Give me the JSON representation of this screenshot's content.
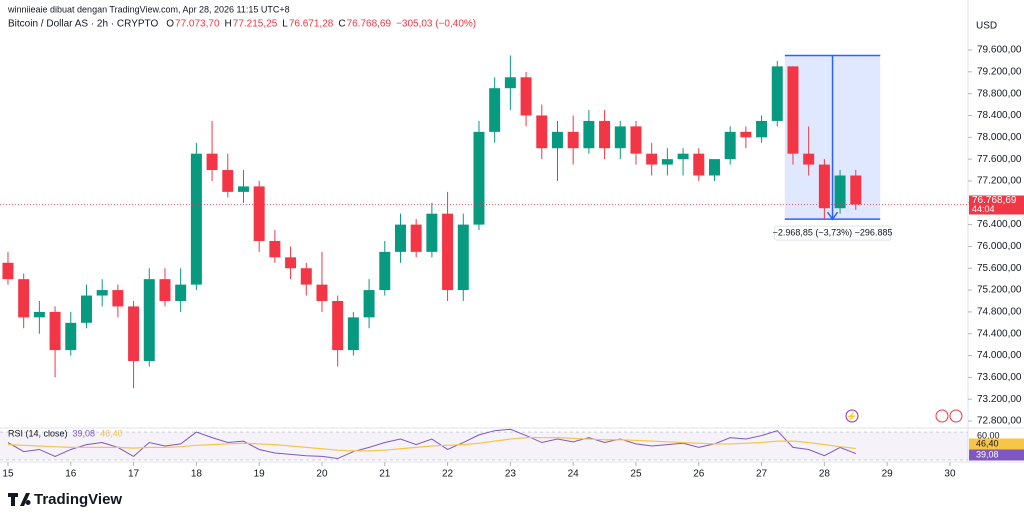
{
  "attribution": "winniieaie dibuat dengan TradingView.com, Apr 28, 2026 11:15 UTC+8",
  "footer": {
    "logo": "TradingView"
  },
  "chart_data": [
    {
      "type": "candlestick",
      "title": "Bitcoin / Dollar AS · 2h · CRYPTO",
      "ohlc": [
        {
          "key": "O",
          "value": "77.073,70"
        },
        {
          "key": "H",
          "value": "77.215,25"
        },
        {
          "key": "L",
          "value": "76.671,28"
        },
        {
          "key": "C",
          "value": "76.768,69"
        }
      ],
      "change": "−305,03 (−0,40%)",
      "currency": "USD",
      "up_color": "#089981",
      "down_color": "#f23645",
      "x": [
        15,
        15.25,
        15.5,
        15.75,
        16,
        16.25,
        16.5,
        16.75,
        17,
        17.25,
        17.5,
        17.75,
        18,
        18.25,
        18.5,
        18.75,
        19,
        19.25,
        19.5,
        19.75,
        20,
        20.25,
        20.5,
        20.75,
        21,
        21.25,
        21.5,
        21.75,
        22,
        22.25,
        22.5,
        22.75,
        23,
        23.25,
        23.5,
        23.75,
        24,
        24.25,
        24.5,
        24.75,
        25,
        25.25,
        25.5,
        25.75,
        26,
        26.25,
        26.5,
        26.75,
        27,
        27.25,
        27.5,
        27.75,
        28,
        28.25,
        28.5
      ],
      "series": [
        {
          "name": "BTCUSD",
          "open": [
            75700,
            75400,
            74700,
            74800,
            74100,
            74600,
            75100,
            75200,
            74900,
            73900,
            75400,
            75000,
            75300,
            77700,
            77400,
            77000,
            77100,
            76100,
            75800,
            75600,
            75300,
            75000,
            74100,
            74700,
            75200,
            75900,
            76400,
            75900,
            76600,
            75200,
            76400,
            78100,
            78900,
            79100,
            78400,
            77800,
            78100,
            77800,
            78300,
            77800,
            78200,
            77700,
            77500,
            77600,
            77700,
            77300,
            77600,
            78100,
            78000,
            78300,
            79300,
            77700,
            77500,
            76700,
            77300
          ],
          "high": [
            75900,
            75500,
            75000,
            74900,
            74800,
            75300,
            75400,
            75300,
            75000,
            75600,
            75600,
            75600,
            77900,
            78300,
            77700,
            77400,
            77200,
            76300,
            76000,
            75700,
            75900,
            75100,
            74800,
            75400,
            76100,
            76600,
            76500,
            76800,
            77000,
            76600,
            78300,
            79100,
            79500,
            79200,
            78600,
            78300,
            78400,
            78500,
            78500,
            78300,
            78300,
            77900,
            77800,
            77800,
            77800,
            77600,
            78200,
            78200,
            78400,
            79400,
            79300,
            78200,
            77600,
            77400,
            77400
          ],
          "low": [
            75300,
            74500,
            74400,
            73600,
            74000,
            74500,
            74900,
            74700,
            73400,
            73800,
            74900,
            74800,
            75200,
            77200,
            76900,
            76800,
            75900,
            75700,
            75400,
            75100,
            74800,
            73800,
            74000,
            74500,
            75100,
            75700,
            75800,
            75800,
            75000,
            75000,
            76300,
            77900,
            78500,
            78200,
            77600,
            77200,
            77500,
            77700,
            77600,
            77600,
            77500,
            77300,
            77300,
            77300,
            77200,
            77200,
            77500,
            77800,
            77900,
            78200,
            77500,
            77300,
            76500,
            76600,
            76670
          ],
          "close": [
            75400,
            74700,
            74800,
            74100,
            74600,
            75100,
            75200,
            74900,
            73900,
            75400,
            75000,
            75300,
            77700,
            77400,
            77000,
            77100,
            76100,
            75800,
            75600,
            75300,
            75000,
            74100,
            74700,
            75200,
            75900,
            76400,
            75900,
            76600,
            75200,
            76400,
            78100,
            78900,
            79100,
            78400,
            77800,
            78100,
            77800,
            78300,
            77800,
            78200,
            77700,
            77500,
            77600,
            77700,
            77300,
            77600,
            78100,
            78000,
            78300,
            79300,
            77700,
            77500,
            76700,
            77300,
            76768.69
          ]
        }
      ],
      "last_price": {
        "value": 76768.69,
        "label": "76.768,69"
      },
      "countdown": "44:04",
      "measure": {
        "x": [
          27.37,
          28.89
        ],
        "y": [
          79500,
          76500
        ],
        "label": "−2.968,85 (−3,73%) −296.885"
      },
      "xlim": [
        14.873,
        30.287
      ],
      "xticks": [
        15,
        16,
        17,
        18,
        19,
        20,
        21,
        22,
        23,
        24,
        25,
        26,
        27,
        28,
        29,
        30
      ],
      "ylim": [
        72672,
        79930
      ],
      "yticks": [
        {
          "value": 72800,
          "label": "72.800,00"
        },
        {
          "value": 73200,
          "label": "73.200,00"
        },
        {
          "value": 73600,
          "label": "73.600,00"
        },
        {
          "value": 74000,
          "label": "74.000,00"
        },
        {
          "value": 74400,
          "label": "74.400,00"
        },
        {
          "value": 74800,
          "label": "74.800,00"
        },
        {
          "value": 75200,
          "label": "75.200,00"
        },
        {
          "value": 75600,
          "label": "75.600,00"
        },
        {
          "value": 76000,
          "label": "76.000,00"
        },
        {
          "value": 76400,
          "label": "76.400,00"
        },
        {
          "value": 76800,
          "label": "76.800,00"
        },
        {
          "value": 77200,
          "label": "77.200,00"
        },
        {
          "value": 77600,
          "label": "77.600,00"
        },
        {
          "value": 78000,
          "label": "78.000,00"
        },
        {
          "value": 78400,
          "label": "78.400,00"
        },
        {
          "value": 78800,
          "label": "78.800,00"
        },
        {
          "value": 79200,
          "label": "79.200,00"
        },
        {
          "value": 79600,
          "label": "79.600,00"
        }
      ],
      "grid": false
    },
    {
      "type": "line",
      "title": "RSI (14, close)",
      "x": [
        15,
        15.25,
        15.5,
        15.75,
        16,
        16.25,
        16.5,
        16.75,
        17,
        17.25,
        17.5,
        17.75,
        18,
        18.25,
        18.5,
        18.75,
        19,
        19.25,
        19.5,
        19.75,
        20,
        20.25,
        20.5,
        20.75,
        21,
        21.25,
        21.5,
        21.75,
        22,
        22.25,
        22.5,
        22.75,
        23,
        23.25,
        23.5,
        23.75,
        24,
        24.25,
        24.5,
        24.75,
        25,
        25.25,
        25.5,
        25.75,
        26,
        26.25,
        26.5,
        26.75,
        27,
        27.25,
        27.5,
        27.75,
        28,
        28.25,
        28.5
      ],
      "series": [
        {
          "name": "RSI",
          "color": "#7e57c2",
          "last_label": "39,08",
          "values": [
            55,
            42,
            45,
            35,
            45,
            52,
            55,
            48,
            35,
            55,
            50,
            53,
            70,
            62,
            55,
            57,
            45,
            40,
            38,
            36,
            35,
            32,
            42,
            48,
            55,
            60,
            52,
            60,
            45,
            55,
            66,
            72,
            74,
            65,
            55,
            60,
            56,
            62,
            55,
            60,
            53,
            50,
            52,
            54,
            48,
            53,
            62,
            60,
            65,
            72,
            48,
            45,
            36,
            48,
            39.08
          ]
        },
        {
          "name": "MA",
          "color": "#f7c548",
          "last_label": "46,40",
          "values": [
            52,
            51,
            50,
            49,
            48,
            48,
            48,
            48,
            47,
            48,
            48,
            49,
            51,
            52,
            53,
            54,
            53,
            52,
            50,
            48,
            46,
            44,
            43,
            43,
            44,
            46,
            48,
            50,
            51,
            52,
            54,
            57,
            60,
            62,
            62,
            62,
            61,
            60,
            59,
            59,
            58,
            57,
            56,
            55,
            54,
            53,
            53,
            54,
            55,
            57,
            57,
            55,
            52,
            49,
            46.4
          ]
        }
      ],
      "band": [
        30,
        70
      ],
      "upper_label": {
        "value": 60,
        "label": "60,00"
      },
      "xlim": [
        14.873,
        30.287
      ],
      "ylim": [
        27,
        73
      ]
    }
  ]
}
